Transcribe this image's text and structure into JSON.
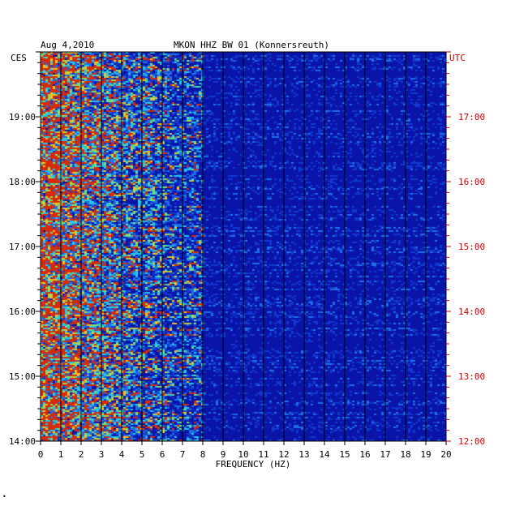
{
  "chart_data": {
    "type": "heatmap",
    "title": "MKON HHZ BW 01 (Konnersreuth)",
    "date": "Aug 4,2010",
    "left_zone": "CES",
    "right_zone": "UTC",
    "xlabel": "FREQUENCY (HZ)",
    "x_range": [
      0,
      20
    ],
    "x_ticks": [
      "0",
      "1",
      "2",
      "3",
      "4",
      "5",
      "6",
      "7",
      "8",
      "9",
      "10",
      "11",
      "12",
      "13",
      "14",
      "15",
      "16",
      "17",
      "18",
      "19",
      "20"
    ],
    "y_left_ticks": [
      "14:00",
      "15:00",
      "16:00",
      "17:00",
      "18:00",
      "19:00"
    ],
    "y_right_ticks": [
      "12:00",
      "13:00",
      "14:00",
      "15:00",
      "16:00",
      "17:00"
    ],
    "y_range_local": [
      "14:00",
      "19:45"
    ],
    "colors": {
      "background": "#0a14a8",
      "left_labels": "#000000",
      "right_labels": "#cc0000",
      "gridlines": "#000000"
    }
  },
  "footer_mark": "•"
}
